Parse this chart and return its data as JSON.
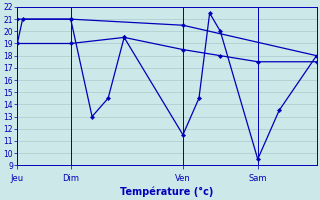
{
  "xlabel": "Température (°c)",
  "ylim": [
    9,
    22
  ],
  "yticks": [
    9,
    10,
    11,
    12,
    13,
    14,
    15,
    16,
    17,
    18,
    19,
    20,
    21,
    22
  ],
  "bg_color": "#cce8e8",
  "grid_color": "#aacccc",
  "line_color": "#0000bb",
  "day_labels": [
    "Jeu",
    "Dim",
    "Ven",
    "Sam"
  ],
  "total_points": 30,
  "day_vlines": [
    0,
    5,
    15.5,
    22.5
  ],
  "line1_x": [
    0,
    0.5,
    5,
    7,
    8.5,
    10,
    15.5,
    17,
    18,
    19,
    22.5,
    24.5,
    28
  ],
  "line1_y": [
    19,
    21,
    21,
    13,
    14.5,
    19.5,
    11.5,
    14.5,
    21.5,
    20,
    9.5,
    13.5,
    18
  ],
  "line2_x": [
    0,
    5,
    15.5,
    28
  ],
  "line2_y": [
    21,
    21,
    20.5,
    18
  ],
  "line3_x": [
    0,
    5,
    10,
    15.5,
    19,
    22.5,
    28
  ],
  "line3_y": [
    19,
    19.0,
    19.5,
    18.5,
    18.0,
    17.5,
    17.5
  ],
  "xlim": [
    0,
    28
  ]
}
